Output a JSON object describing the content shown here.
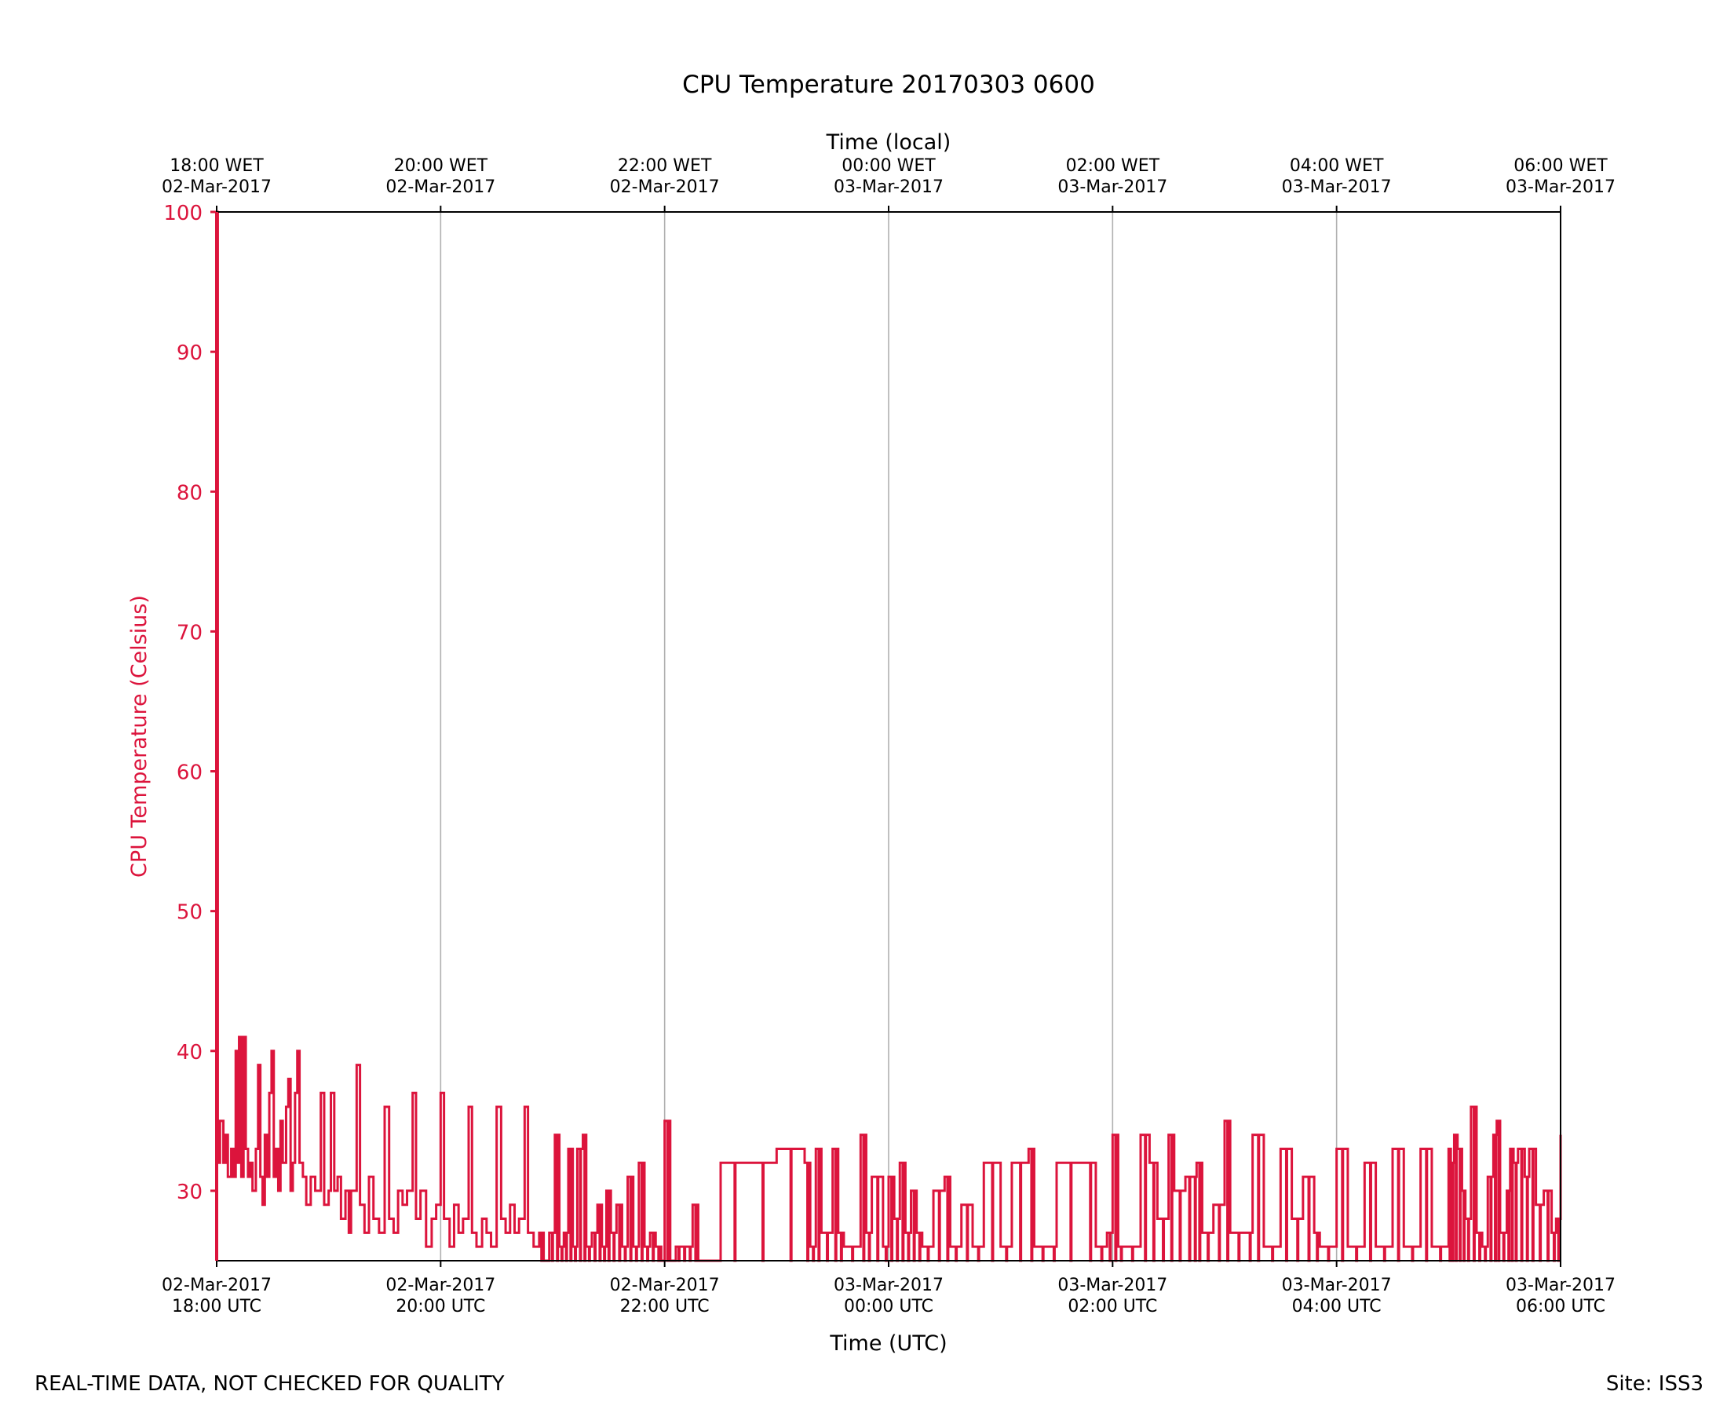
{
  "chart_data": {
    "type": "line",
    "title": "CPU Temperature 20170303 0600",
    "xlabel_bottom": "Time (UTC)",
    "xlabel_top": "Time (local)",
    "ylabel": "CPU Temperature (Celsius)",
    "ylim": [
      25,
      100
    ],
    "yticks": [
      30,
      40,
      50,
      60,
      70,
      80,
      90,
      100
    ],
    "xlim_hours": [
      0,
      12
    ],
    "grid": "vertical",
    "colors": {
      "series": "#dc143c",
      "axis_label": "#dc143c",
      "grid": "#b0b0b0",
      "text": "#000000"
    },
    "bottom_ticks": [
      {
        "hour": 0,
        "line1": "02-Mar-2017",
        "line2": "18:00 UTC"
      },
      {
        "hour": 2,
        "line1": "02-Mar-2017",
        "line2": "20:00 UTC"
      },
      {
        "hour": 4,
        "line1": "02-Mar-2017",
        "line2": "22:00 UTC"
      },
      {
        "hour": 6,
        "line1": "03-Mar-2017",
        "line2": "00:00 UTC"
      },
      {
        "hour": 8,
        "line1": "03-Mar-2017",
        "line2": "02:00 UTC"
      },
      {
        "hour": 10,
        "line1": "03-Mar-2017",
        "line2": "04:00 UTC"
      },
      {
        "hour": 12,
        "line1": "03-Mar-2017",
        "line2": "06:00 UTC"
      }
    ],
    "top_ticks": [
      {
        "hour": 0,
        "line1": "18:00 WET",
        "line2": "02-Mar-2017"
      },
      {
        "hour": 2,
        "line1": "20:00 WET",
        "line2": "02-Mar-2017"
      },
      {
        "hour": 4,
        "line1": "22:00 WET",
        "line2": "02-Mar-2017"
      },
      {
        "hour": 6,
        "line1": "00:00 WET",
        "line2": "03-Mar-2017"
      },
      {
        "hour": 8,
        "line1": "02:00 WET",
        "line2": "03-Mar-2017"
      },
      {
        "hour": 10,
        "line1": "04:00 WET",
        "line2": "03-Mar-2017"
      },
      {
        "hour": 12,
        "line1": "06:00 WET",
        "line2": "03-Mar-2017"
      }
    ],
    "series": [
      {
        "name": "CPU Temperature",
        "baseline": 25,
        "points": [
          [
            0.0,
            100
          ],
          [
            0.01,
            32
          ],
          [
            0.03,
            35
          ],
          [
            0.06,
            32
          ],
          [
            0.08,
            34
          ],
          [
            0.1,
            31
          ],
          [
            0.13,
            33
          ],
          [
            0.15,
            31
          ],
          [
            0.17,
            40
          ],
          [
            0.19,
            32
          ],
          [
            0.2,
            41
          ],
          [
            0.22,
            31
          ],
          [
            0.24,
            41
          ],
          [
            0.26,
            33
          ],
          [
            0.28,
            31
          ],
          [
            0.3,
            32
          ],
          [
            0.32,
            30
          ],
          [
            0.35,
            33
          ],
          [
            0.37,
            39
          ],
          [
            0.39,
            31
          ],
          [
            0.41,
            29
          ],
          [
            0.43,
            34
          ],
          [
            0.45,
            31
          ],
          [
            0.47,
            37
          ],
          [
            0.49,
            40
          ],
          [
            0.51,
            31
          ],
          [
            0.53,
            33
          ],
          [
            0.55,
            30
          ],
          [
            0.57,
            35
          ],
          [
            0.59,
            32
          ],
          [
            0.62,
            36
          ],
          [
            0.64,
            38
          ],
          [
            0.66,
            30
          ],
          [
            0.68,
            32
          ],
          [
            0.7,
            37
          ],
          [
            0.72,
            40
          ],
          [
            0.74,
            32
          ],
          [
            0.77,
            31
          ],
          [
            0.8,
            29
          ],
          [
            0.84,
            31
          ],
          [
            0.88,
            30
          ],
          [
            0.93,
            37
          ],
          [
            0.96,
            29
          ],
          [
            1.0,
            30
          ],
          [
            1.02,
            37
          ],
          [
            1.05,
            30
          ],
          [
            1.08,
            31
          ],
          [
            1.11,
            28
          ],
          [
            1.15,
            30
          ],
          [
            1.18,
            27
          ],
          [
            1.2,
            30
          ],
          [
            1.25,
            39
          ],
          [
            1.28,
            29
          ],
          [
            1.32,
            27
          ],
          [
            1.36,
            31
          ],
          [
            1.4,
            28
          ],
          [
            1.45,
            27
          ],
          [
            1.5,
            36
          ],
          [
            1.54,
            28
          ],
          [
            1.58,
            27
          ],
          [
            1.62,
            30
          ],
          [
            1.66,
            29
          ],
          [
            1.7,
            30
          ],
          [
            1.75,
            37
          ],
          [
            1.78,
            28
          ],
          [
            1.82,
            30
          ],
          [
            1.87,
            26
          ],
          [
            1.92,
            28
          ],
          [
            1.96,
            29
          ],
          [
            2.0,
            37
          ],
          [
            2.03,
            28
          ],
          [
            2.08,
            26
          ],
          [
            2.12,
            29
          ],
          [
            2.16,
            27
          ],
          [
            2.2,
            28
          ],
          [
            2.25,
            36
          ],
          [
            2.28,
            27
          ],
          [
            2.32,
            26
          ],
          [
            2.37,
            28
          ],
          [
            2.41,
            27
          ],
          [
            2.45,
            26
          ],
          [
            2.5,
            36
          ],
          [
            2.54,
            28
          ],
          [
            2.58,
            27
          ],
          [
            2.62,
            29
          ],
          [
            2.66,
            27
          ],
          [
            2.7,
            28
          ],
          [
            2.75,
            36
          ],
          [
            2.78,
            27
          ],
          [
            2.83,
            26
          ],
          [
            2.88,
            27
          ],
          [
            2.92,
            25
          ],
          [
            2.97,
            27
          ],
          [
            3.02,
            34
          ],
          [
            3.06,
            26
          ],
          [
            3.1,
            27
          ],
          [
            3.14,
            33
          ],
          [
            3.18,
            26
          ],
          [
            3.22,
            33
          ],
          [
            3.27,
            34
          ],
          [
            3.3,
            26
          ],
          [
            3.35,
            27
          ],
          [
            3.4,
            29
          ],
          [
            3.44,
            26
          ],
          [
            3.48,
            30
          ],
          [
            3.52,
            27
          ],
          [
            3.57,
            29
          ],
          [
            3.62,
            26
          ],
          [
            3.67,
            31
          ],
          [
            3.72,
            26
          ],
          [
            3.77,
            32
          ],
          [
            3.82,
            26
          ],
          [
            3.87,
            27
          ],
          [
            3.92,
            26
          ],
          [
            3.97,
            25
          ],
          [
            4.0,
            35
          ],
          [
            4.05,
            25
          ],
          [
            4.1,
            26
          ],
          [
            4.15,
            26
          ],
          [
            4.2,
            26
          ],
          [
            4.25,
            29
          ],
          [
            4.3,
            25
          ],
          [
            4.5,
            32
          ],
          [
            4.75,
            32
          ],
          [
            5.0,
            33
          ],
          [
            5.25,
            32
          ],
          [
            5.3,
            26
          ],
          [
            5.35,
            33
          ],
          [
            5.4,
            27
          ],
          [
            5.5,
            33
          ],
          [
            5.55,
            27
          ],
          [
            5.6,
            26
          ],
          [
            5.75,
            34
          ],
          [
            5.8,
            27
          ],
          [
            5.85,
            31
          ],
          [
            5.95,
            26
          ],
          [
            6.0,
            31
          ],
          [
            6.05,
            28
          ],
          [
            6.1,
            32
          ],
          [
            6.15,
            27
          ],
          [
            6.2,
            30
          ],
          [
            6.25,
            27
          ],
          [
            6.3,
            26
          ],
          [
            6.4,
            30
          ],
          [
            6.5,
            31
          ],
          [
            6.55,
            26
          ],
          [
            6.65,
            29
          ],
          [
            6.75,
            26
          ],
          [
            6.85,
            32
          ],
          [
            7.0,
            26
          ],
          [
            7.1,
            32
          ],
          [
            7.25,
            33
          ],
          [
            7.3,
            26
          ],
          [
            7.45,
            26
          ],
          [
            7.5,
            32
          ],
          [
            7.75,
            32
          ],
          [
            7.85,
            26
          ],
          [
            7.95,
            27
          ],
          [
            8.0,
            34
          ],
          [
            8.05,
            26
          ],
          [
            8.1,
            26
          ],
          [
            8.25,
            34
          ],
          [
            8.33,
            32
          ],
          [
            8.4,
            28
          ],
          [
            8.5,
            34
          ],
          [
            8.55,
            30
          ],
          [
            8.65,
            31
          ],
          [
            8.72,
            31
          ],
          [
            8.75,
            32
          ],
          [
            8.8,
            27
          ],
          [
            8.9,
            29
          ],
          [
            9.0,
            35
          ],
          [
            9.05,
            27
          ],
          [
            9.2,
            27
          ],
          [
            9.25,
            34
          ],
          [
            9.35,
            26
          ],
          [
            9.5,
            33
          ],
          [
            9.6,
            28
          ],
          [
            9.7,
            31
          ],
          [
            9.8,
            27
          ],
          [
            9.85,
            26
          ],
          [
            10.0,
            33
          ],
          [
            10.1,
            26
          ],
          [
            10.25,
            32
          ],
          [
            10.35,
            26
          ],
          [
            10.5,
            33
          ],
          [
            10.6,
            26
          ],
          [
            10.75,
            33
          ],
          [
            10.85,
            26
          ],
          [
            11.0,
            33
          ],
          [
            11.02,
            32
          ],
          [
            11.05,
            34
          ],
          [
            11.08,
            33
          ],
          [
            11.12,
            30
          ],
          [
            11.15,
            28
          ],
          [
            11.2,
            36
          ],
          [
            11.25,
            27
          ],
          [
            11.3,
            26
          ],
          [
            11.35,
            31
          ],
          [
            11.4,
            34
          ],
          [
            11.43,
            35
          ],
          [
            11.46,
            27
          ],
          [
            11.52,
            30
          ],
          [
            11.55,
            33
          ],
          [
            11.58,
            32
          ],
          [
            11.62,
            33
          ],
          [
            11.68,
            31
          ],
          [
            11.72,
            33
          ],
          [
            11.78,
            29
          ],
          [
            11.85,
            30
          ],
          [
            11.92,
            27
          ],
          [
            11.96,
            28
          ],
          [
            12.0,
            34
          ]
        ]
      }
    ]
  },
  "footer": {
    "left": "REAL-TIME DATA, NOT CHECKED FOR QUALITY",
    "right": "Site: ISS3"
  }
}
